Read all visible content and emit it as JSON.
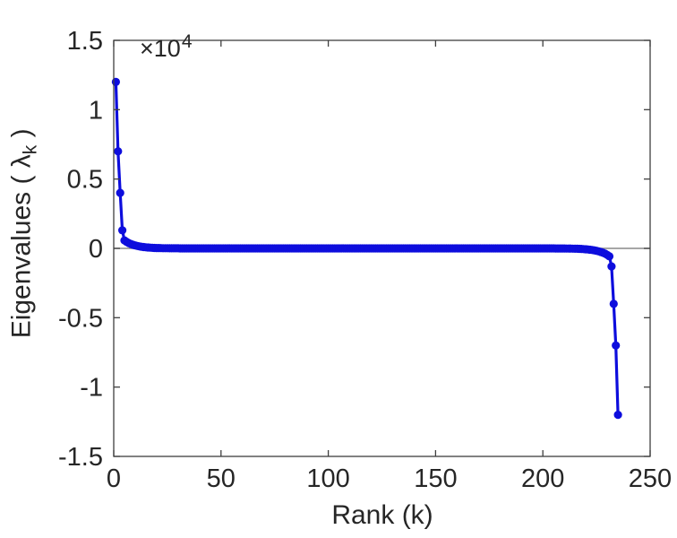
{
  "figure": {
    "background": "#ffffff",
    "axis_color": "#3f3f3f",
    "text_color": "#262626",
    "zero_line_color": "#8a8a8a"
  },
  "chart_data": {
    "type": "line",
    "title": "",
    "xlabel": "Rank (k)",
    "ylabel_parts": {
      "prefix": "Eigenvalues ( λ",
      "subscript": "k",
      "suffix": " )"
    },
    "y_exponent": {
      "base": "×10",
      "power": "4"
    },
    "xlim": [
      0,
      250
    ],
    "ylim": [
      -15000,
      15000
    ],
    "xtick_values": [
      0,
      50,
      100,
      150,
      200,
      250
    ],
    "xtick_labels": [
      "0",
      "50",
      "100",
      "150",
      "200",
      "250"
    ],
    "ytick_values": [
      -15000,
      -10000,
      -5000,
      0,
      5000,
      10000,
      15000
    ],
    "ytick_labels": [
      "-1.5",
      "-1",
      "-0.5",
      "0",
      "0.5",
      "1",
      "1.5"
    ],
    "grid": false,
    "legend": null,
    "zero_line": true,
    "series": [
      {
        "name": "eigenvalues",
        "color": "#0d0ddd",
        "marker": "dot",
        "x_start": 1,
        "values": [
          12000,
          7000,
          4000,
          1300,
          573,
          469,
          384,
          314,
          257,
          211,
          172,
          141,
          115,
          95,
          77,
          63,
          52,
          42,
          35,
          28,
          23,
          19,
          16,
          13,
          10,
          9,
          7,
          6,
          5,
          4,
          3,
          3,
          2,
          2,
          1,
          1,
          1,
          0,
          0,
          0,
          0,
          0,
          0,
          0,
          0,
          0,
          0,
          0,
          0,
          0,
          0,
          0,
          0,
          0,
          0,
          0,
          0,
          0,
          0,
          0,
          0,
          0,
          0,
          0,
          0,
          0,
          0,
          0,
          0,
          0,
          0,
          0,
          0,
          0,
          0,
          0,
          0,
          0,
          0,
          0,
          0,
          0,
          0,
          0,
          0,
          0,
          0,
          0,
          0,
          0,
          0,
          0,
          0,
          0,
          0,
          0,
          0,
          0,
          0,
          0,
          0,
          0,
          0,
          0,
          0,
          0,
          0,
          0,
          0,
          0,
          0,
          0,
          0,
          0,
          0,
          0,
          0,
          0,
          0,
          0,
          0,
          0,
          0,
          0,
          0,
          0,
          0,
          0,
          0,
          0,
          0,
          0,
          0,
          0,
          0,
          0,
          0,
          0,
          0,
          0,
          0,
          0,
          0,
          0,
          0,
          0,
          0,
          0,
          0,
          0,
          0,
          0,
          0,
          0,
          0,
          0,
          0,
          0,
          0,
          0,
          0,
          0,
          0,
          0,
          0,
          0,
          0,
          0,
          0,
          0,
          0,
          0,
          0,
          0,
          0,
          0,
          0,
          0,
          0,
          0,
          0,
          0,
          0,
          0,
          0,
          0,
          0,
          0,
          0,
          0,
          0,
          0,
          0,
          0,
          0,
          0,
          0,
          0,
          -1,
          -1,
          -1,
          -2,
          -2,
          -3,
          -3,
          -4,
          -5,
          -6,
          -7,
          -9,
          -10,
          -13,
          -16,
          -19,
          -23,
          -28,
          -35,
          -42,
          -52,
          -63,
          -77,
          -95,
          -115,
          -141,
          -172,
          -211,
          -257,
          -314,
          -384,
          -469,
          -573,
          -1300,
          -4000,
          -7000,
          -12000
        ]
      }
    ]
  }
}
